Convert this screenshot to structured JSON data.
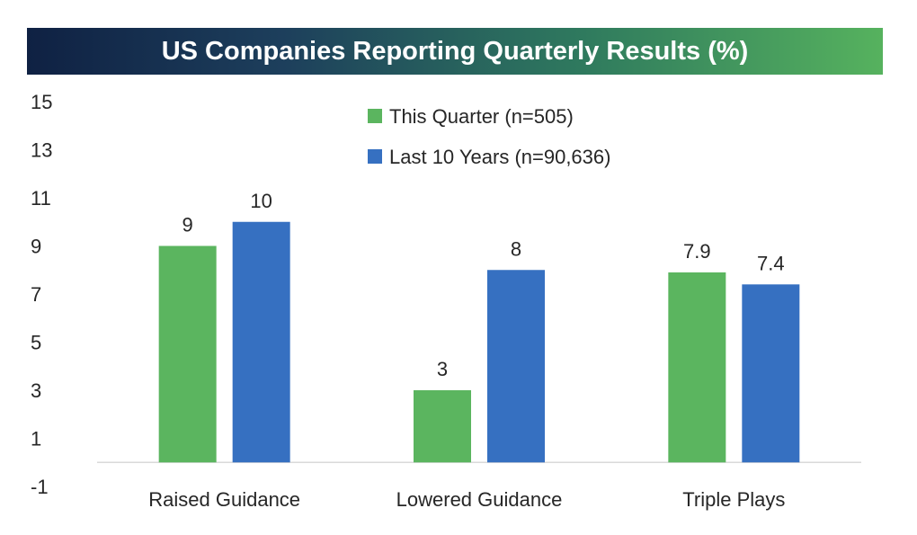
{
  "chart_data": {
    "type": "bar",
    "title": "US Companies Reporting Quarterly Results (%)",
    "categories": [
      "Raised Guidance",
      "Lowered Guidance",
      "Triple Plays"
    ],
    "series": [
      {
        "name": "This Quarter (n=505)",
        "values": [
          9,
          3,
          7.9
        ],
        "labels": [
          "9",
          "3",
          "7.9"
        ],
        "color": "#5bb55f"
      },
      {
        "name": "Last 10 Years (n=90,636)",
        "values": [
          10,
          8,
          7.4
        ],
        "labels": [
          "10",
          "8",
          "7.4"
        ],
        "color": "#3670c1"
      }
    ],
    "ylim": [
      -1,
      15
    ],
    "yticks": [
      "15",
      "13",
      "11",
      "9",
      "7",
      "5",
      "3",
      "1",
      "-1"
    ],
    "grid": false,
    "legend": "top-center"
  }
}
